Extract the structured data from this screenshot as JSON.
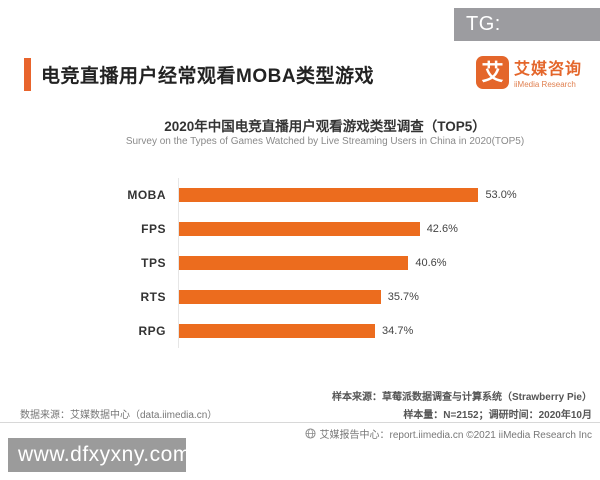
{
  "overlays": {
    "tg_badge": "TG: MYYJJPP",
    "watermark": "www.dfxyxny.com"
  },
  "header": {
    "title": "电竞直播用户经常观看MOBA类型游戏",
    "logo": {
      "glyph": "艾",
      "name_cn": "艾媒咨询",
      "name_en": "iiMedia Research"
    }
  },
  "chart_data": {
    "type": "bar",
    "orientation": "horizontal",
    "title": "2020年中国电竞直播用户观看游戏类型调查（TOP5）",
    "subtitle": "Survey on the Types of Games Watched by Live Streaming Users in China in 2020(TOP5)",
    "categories": [
      "MOBA",
      "FPS",
      "TPS",
      "RTS",
      "RPG"
    ],
    "values": [
      53.0,
      42.6,
      40.6,
      35.7,
      34.7
    ],
    "value_labels": [
      "53.0%",
      "42.6%",
      "40.6%",
      "35.7%",
      "34.7%"
    ],
    "xlim": [
      0,
      60
    ],
    "bar_color": "#ec6c1e",
    "grid": false,
    "legend": null
  },
  "notes": {
    "sample_source": "样本来源：草莓派数据调查与计算系统（Strawberry Pie）",
    "sample_size": "样本量：N=2152；调研时间：2020年10月",
    "data_source": "数据来源：艾媒数据中心（data.iimedia.cn）"
  },
  "footer": {
    "text": "艾媒报告中心：report.iimedia.cn ©2021 iiMedia Research Inc"
  },
  "colors": {
    "accent_orange": "#ec6c1e",
    "badge_bg": "#9c9ca0",
    "watermark_bg": "#9b9b9b"
  }
}
